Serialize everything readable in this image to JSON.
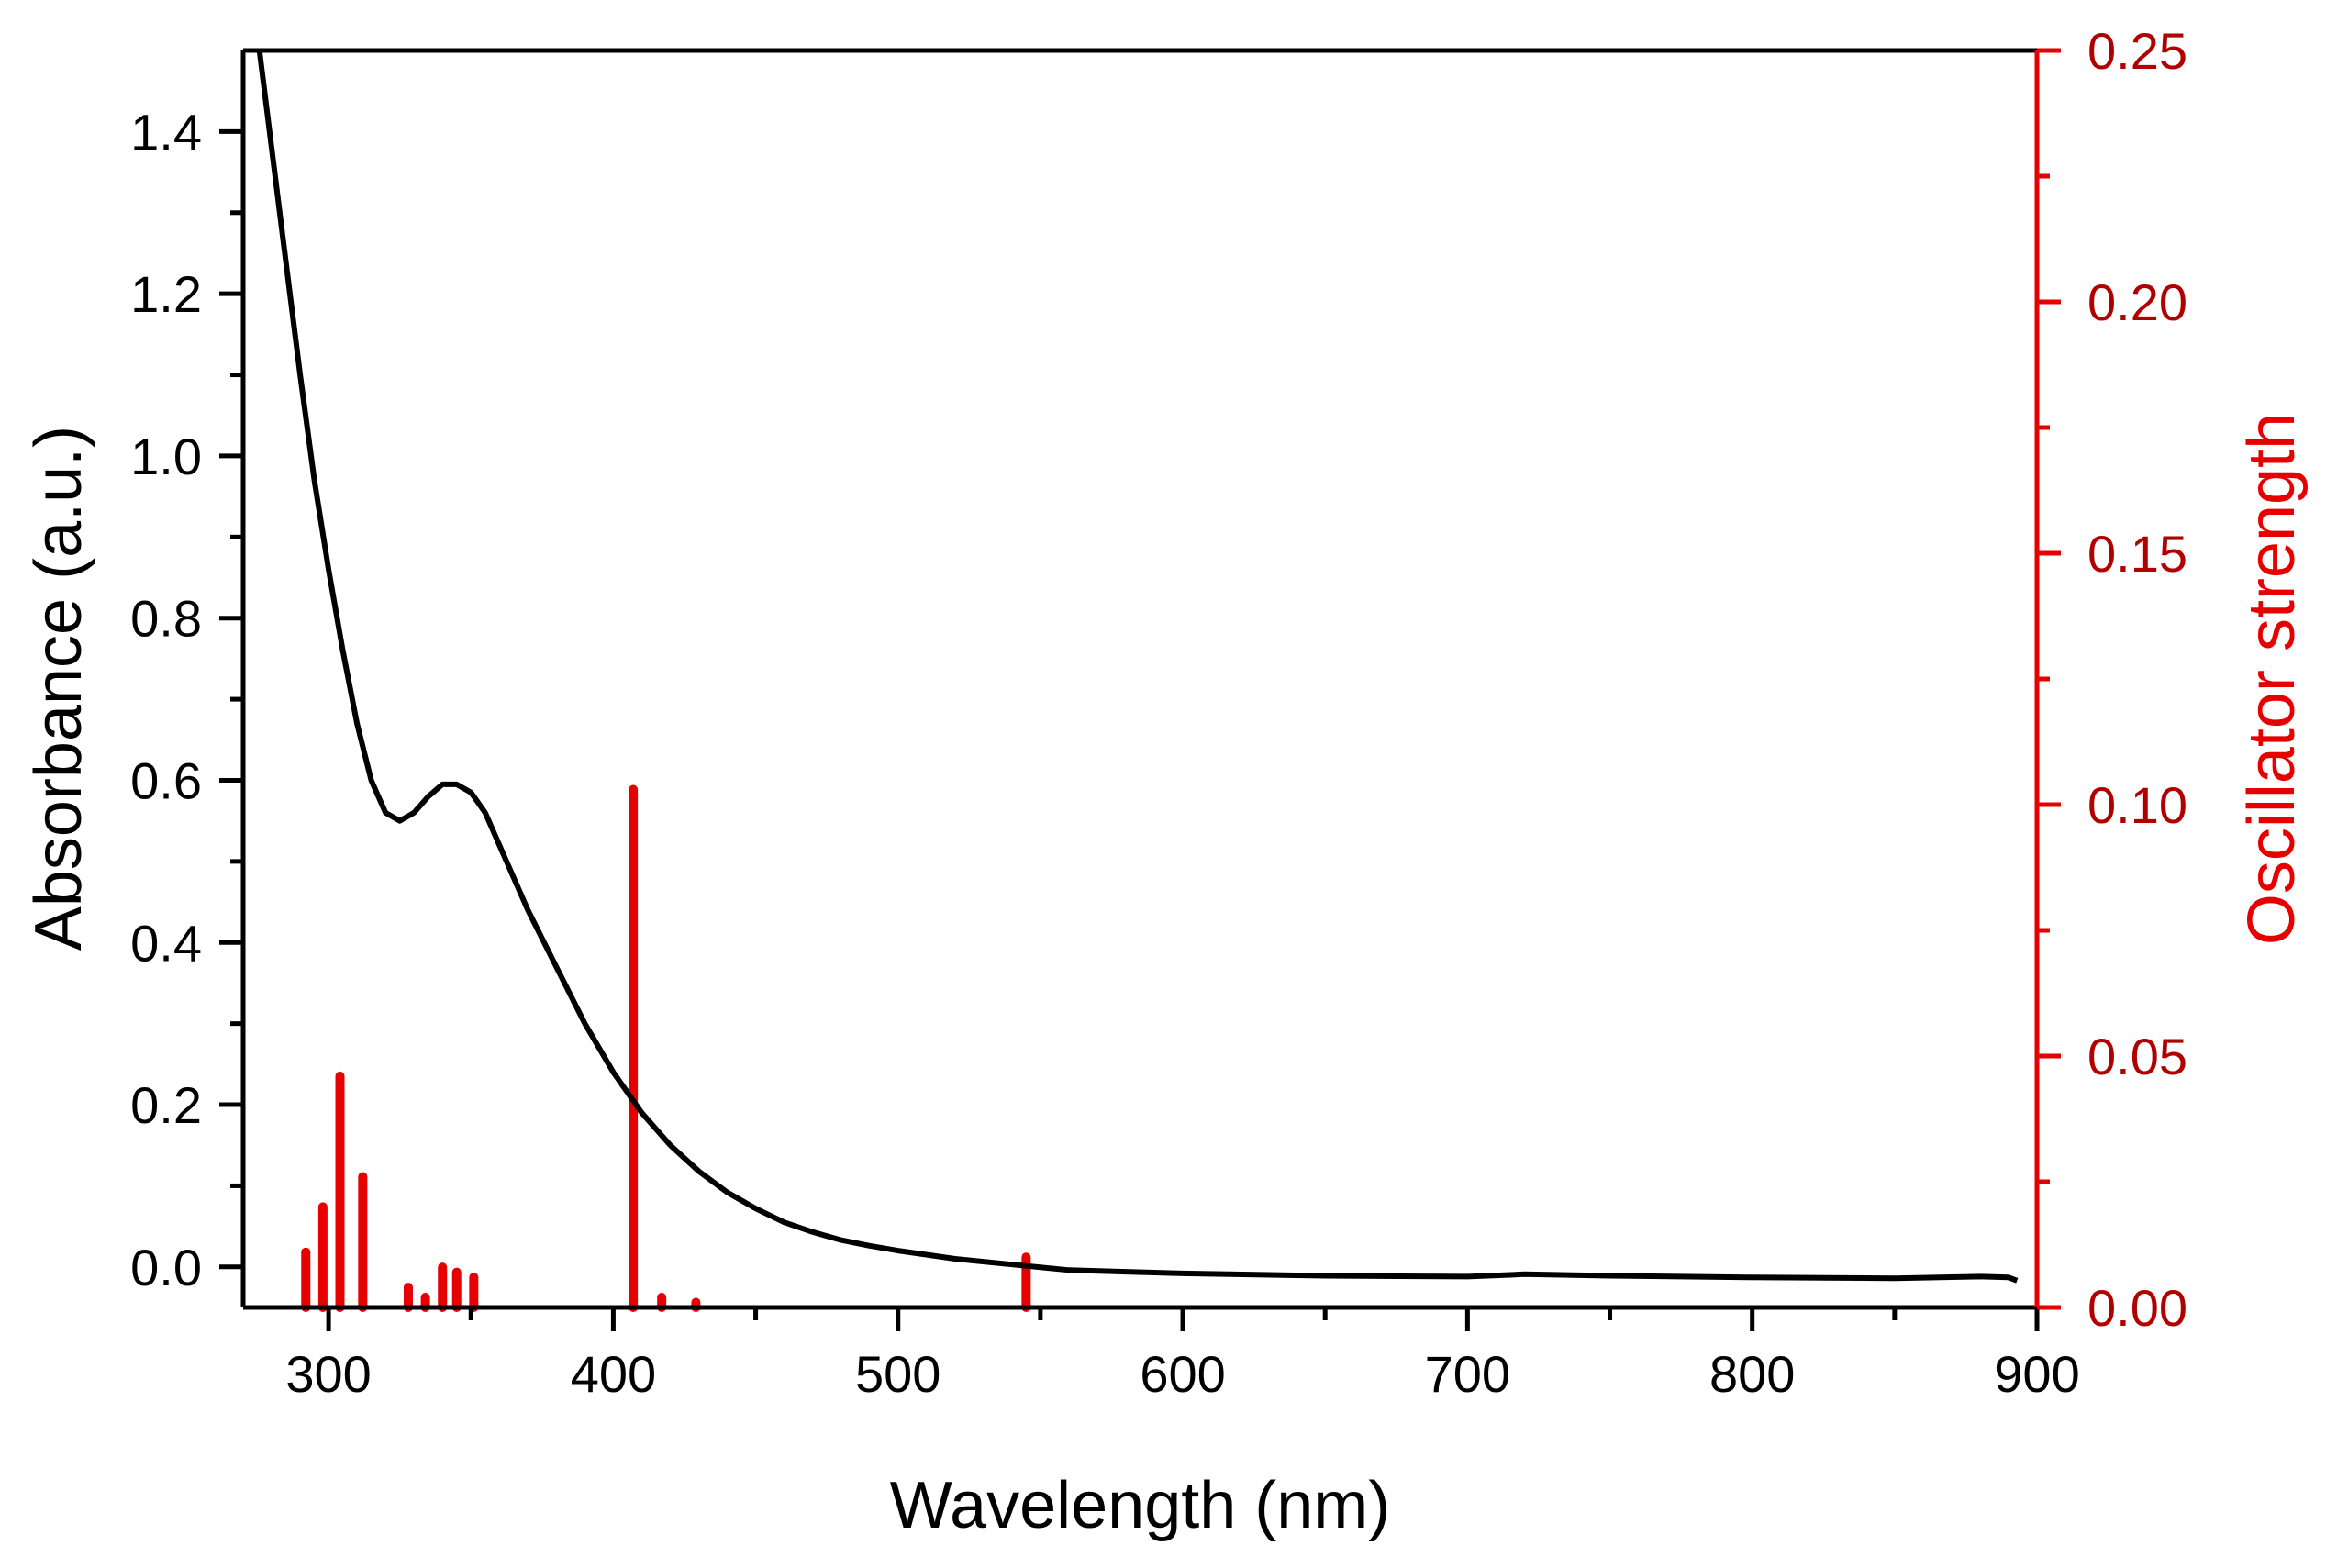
{
  "chart_data": {
    "type": "line",
    "xlabel": "Wavelength (nm)",
    "ylabel": "Absorbance (a.u.)",
    "y2label": "Oscillator strength",
    "xlim": [
      270,
      900
    ],
    "ylim": [
      -0.05,
      1.5
    ],
    "y2lim": [
      0,
      0.25
    ],
    "x_ticks": [
      "300",
      "400",
      "500",
      "600",
      "700",
      "800",
      "900"
    ],
    "y_ticks": [
      "0.0",
      "0.2",
      "0.4",
      "0.6",
      "0.8",
      "1.0",
      "1.2",
      "1.4"
    ],
    "y2_ticks": [
      "0.00",
      "0.05",
      "0.10",
      "0.15",
      "0.20",
      "0.25"
    ],
    "colors": {
      "absorbance": "#000000",
      "oscillator": "#e60000",
      "y2_tick_labels": "#b00000"
    },
    "series": [
      {
        "name": "Absorbance",
        "axis": "left",
        "kind": "line",
        "x": [
          275,
          280,
          285,
          290,
          295,
          300,
          305,
          310,
          315,
          320,
          325,
          330,
          335,
          340,
          345,
          350,
          355,
          360,
          370,
          380,
          390,
          400,
          410,
          420,
          430,
          440,
          450,
          460,
          470,
          480,
          490,
          500,
          520,
          540,
          560,
          580,
          600,
          650,
          700,
          720,
          750,
          800,
          850,
          880,
          890,
          893
        ],
        "y": [
          1.52,
          1.38,
          1.24,
          1.1,
          0.97,
          0.86,
          0.76,
          0.67,
          0.6,
          0.56,
          0.55,
          0.56,
          0.58,
          0.595,
          0.595,
          0.585,
          0.56,
          0.52,
          0.44,
          0.37,
          0.3,
          0.24,
          0.19,
          0.15,
          0.118,
          0.092,
          0.072,
          0.055,
          0.043,
          0.033,
          0.026,
          0.02,
          0.01,
          0.003,
          -0.004,
          -0.006,
          -0.008,
          -0.011,
          -0.012,
          -0.009,
          -0.011,
          -0.013,
          -0.014,
          -0.012,
          -0.013,
          -0.017
        ]
      },
      {
        "name": "Oscillator strength",
        "axis": "right",
        "kind": "stick",
        "x": [
          292,
          298,
          304,
          312,
          328,
          334,
          340,
          345,
          351,
          407,
          417,
          429,
          545
        ],
        "y": [
          0.011,
          0.02,
          0.046,
          0.026,
          0.004,
          0.002,
          0.008,
          0.007,
          0.006,
          0.103,
          0.002,
          0.001,
          0.01
        ]
      }
    ]
  }
}
